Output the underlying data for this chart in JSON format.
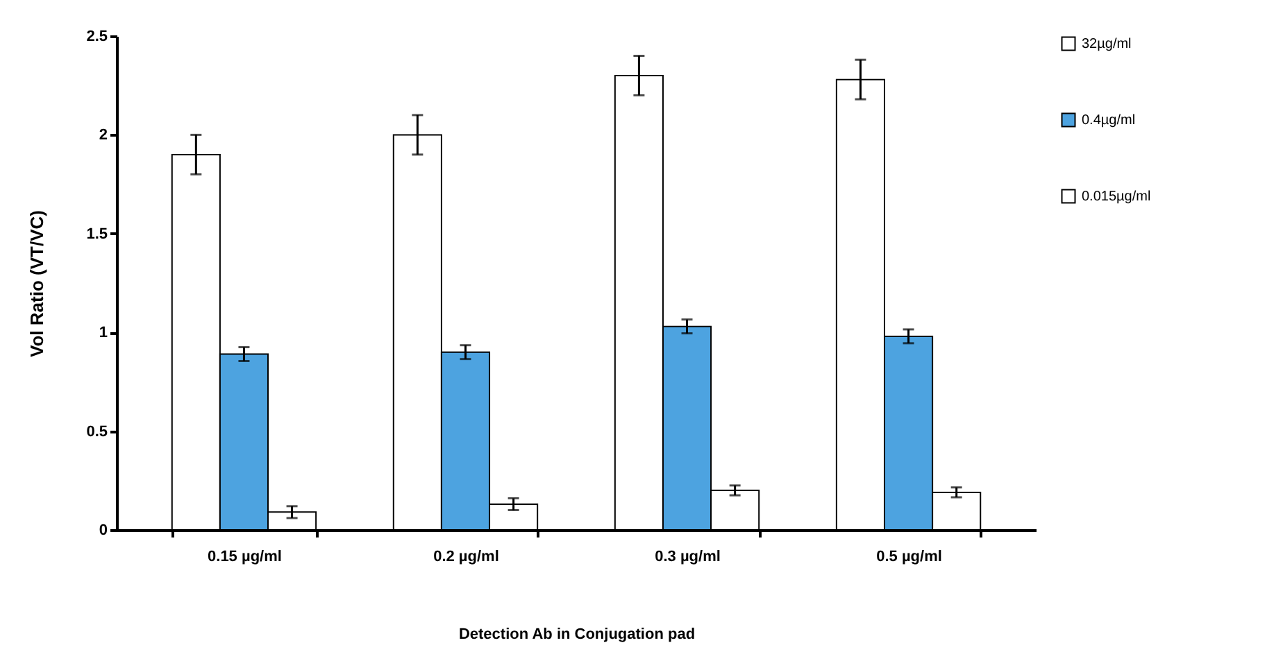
{
  "chart_data": {
    "type": "bar",
    "xlabel": "Detection Ab in Conjugation pad",
    "ylabel": "Vol Ratio (VT/VC)",
    "categories": [
      "0.15 µg/ml",
      "0.2 µg/ml",
      "0.3 µg/ml",
      "0.5 µg/ml"
    ],
    "series": [
      {
        "name": "32µg/ml",
        "color": "#ffffff",
        "values": [
          1.9,
          2.0,
          2.3,
          2.28
        ],
        "errors": [
          0.1,
          0.1,
          0.1,
          0.1
        ]
      },
      {
        "name": "0.4µg/ml",
        "color": "#4da3e0",
        "values": [
          0.89,
          0.9,
          1.03,
          0.98
        ],
        "errors": [
          0.035,
          0.035,
          0.035,
          0.035
        ]
      },
      {
        "name": "0.015µg/ml",
        "color": "#ffffff",
        "values": [
          0.09,
          0.13,
          0.2,
          0.19
        ],
        "errors": [
          0.03,
          0.03,
          0.025,
          0.025
        ]
      }
    ],
    "ylim": [
      0,
      2.5
    ],
    "yticks": [
      0,
      0.5,
      1,
      1.5,
      2,
      2.5
    ],
    "grid": false,
    "legend": "right"
  }
}
